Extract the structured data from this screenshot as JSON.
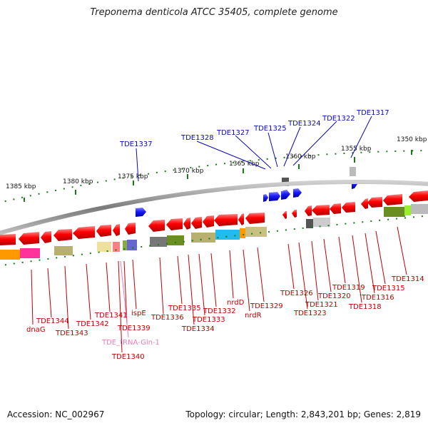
{
  "title": "Treponema denticola ATCC 35405, complete genome",
  "accession": "Accession: NC_002967",
  "topology": "Topology: circular; Length: 2,843,201 bp; Genes: 2,819",
  "scale_labels": [
    "1385 kbp",
    "1380 kbp",
    "1375 kbp",
    "1370 kbp",
    "1365 kbp",
    "1360 kbp",
    "1355 kbp",
    "1350 kbp"
  ],
  "top_labels": [
    "TDE1337",
    "TDE1328",
    "TDE1327",
    "TDE1325",
    "TDE1324",
    "TDE1322",
    "TDE1317"
  ],
  "bottom_labels": [
    "dnaG",
    "TDE1344",
    "TDE1343",
    "TDE1342",
    "TDE1341",
    "TDE1340",
    "TDE_tRNA-Gln-1",
    "TDE1339",
    "ispE",
    "TDE1336",
    "TDE1335",
    "TDE1334",
    "TDE1333",
    "TDE1332",
    "nrdD",
    "nrdR",
    "TDE1329",
    "TDE1326",
    "TDE1323",
    "TDE1321",
    "TDE1320",
    "TDE1319",
    "TDE1318",
    "TDE1316",
    "TDE1315",
    "TDE1314"
  ],
  "colors": {
    "forward_gene": "#1a1aff",
    "reverse_gene": "#ff0000",
    "backbone": "#888888",
    "tick": "#1a7a1a",
    "top_label": "#0a0ab4",
    "bottom_label": "#c00000",
    "trna_label": "#e87fb8"
  }
}
